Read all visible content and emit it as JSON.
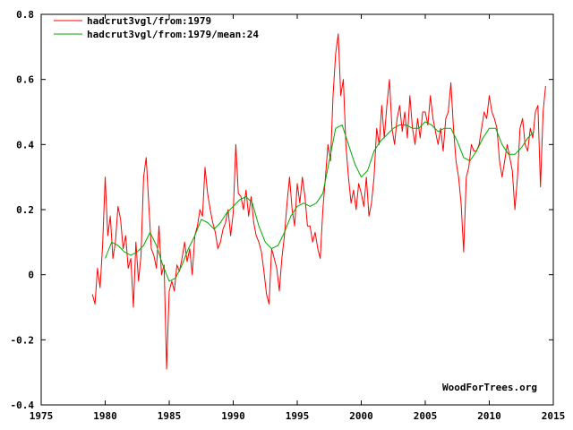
{
  "chart_data": {
    "type": "line",
    "title": "",
    "xlabel": "",
    "ylabel": "",
    "xlim": [
      1975,
      2015
    ],
    "ylim": [
      -0.4,
      0.8
    ],
    "x_ticks": [
      "1975",
      "1980",
      "1985",
      "1990",
      "1995",
      "2000",
      "2005",
      "2010",
      "2015"
    ],
    "y_ticks": [
      "-0.4",
      "-0.2",
      "0",
      "0.2",
      "0.4",
      "0.6",
      "0.8"
    ],
    "grid": false,
    "legend_position": "top-left",
    "credit": "WoodForTrees.org",
    "series": [
      {
        "name": "hadcrut3vgl/from:1979",
        "color": "#ff0000",
        "style": "monthly",
        "points": [
          [
            1979.0,
            -0.06
          ],
          [
            1979.2,
            -0.09
          ],
          [
            1979.4,
            0.02
          ],
          [
            1979.6,
            -0.04
          ],
          [
            1979.8,
            0.09
          ],
          [
            1980.0,
            0.3
          ],
          [
            1980.2,
            0.12
          ],
          [
            1980.4,
            0.18
          ],
          [
            1980.6,
            0.05
          ],
          [
            1980.8,
            0.1
          ],
          [
            1981.0,
            0.21
          ],
          [
            1981.2,
            0.17
          ],
          [
            1981.4,
            0.08
          ],
          [
            1981.6,
            0.12
          ],
          [
            1981.8,
            0.02
          ],
          [
            1982.0,
            0.05
          ],
          [
            1982.2,
            -0.1
          ],
          [
            1982.4,
            0.1
          ],
          [
            1982.6,
            -0.02
          ],
          [
            1982.8,
            0.06
          ],
          [
            1983.0,
            0.3
          ],
          [
            1983.2,
            0.36
          ],
          [
            1983.4,
            0.22
          ],
          [
            1983.6,
            0.08
          ],
          [
            1983.8,
            0.06
          ],
          [
            1984.0,
            0.02
          ],
          [
            1984.2,
            0.15
          ],
          [
            1984.4,
            0.0
          ],
          [
            1984.6,
            0.03
          ],
          [
            1984.8,
            -0.29
          ],
          [
            1985.0,
            -0.05
          ],
          [
            1985.2,
            -0.02
          ],
          [
            1985.4,
            -0.05
          ],
          [
            1985.6,
            0.03
          ],
          [
            1985.8,
            0.01
          ],
          [
            1986.0,
            0.05
          ],
          [
            1986.2,
            0.1
          ],
          [
            1986.4,
            0.04
          ],
          [
            1986.6,
            0.08
          ],
          [
            1986.8,
            0.0
          ],
          [
            1987.0,
            0.12
          ],
          [
            1987.2,
            0.15
          ],
          [
            1987.4,
            0.2
          ],
          [
            1987.6,
            0.18
          ],
          [
            1987.8,
            0.33
          ],
          [
            1988.0,
            0.25
          ],
          [
            1988.2,
            0.2
          ],
          [
            1988.4,
            0.16
          ],
          [
            1988.6,
            0.13
          ],
          [
            1988.8,
            0.08
          ],
          [
            1989.0,
            0.1
          ],
          [
            1989.2,
            0.14
          ],
          [
            1989.4,
            0.16
          ],
          [
            1989.6,
            0.2
          ],
          [
            1989.8,
            0.12
          ],
          [
            1990.0,
            0.19
          ],
          [
            1990.2,
            0.4
          ],
          [
            1990.4,
            0.25
          ],
          [
            1990.6,
            0.24
          ],
          [
            1990.8,
            0.2
          ],
          [
            1991.0,
            0.26
          ],
          [
            1991.2,
            0.18
          ],
          [
            1991.4,
            0.24
          ],
          [
            1991.6,
            0.16
          ],
          [
            1991.8,
            0.12
          ],
          [
            1992.0,
            0.1
          ],
          [
            1992.2,
            0.07
          ],
          [
            1992.4,
            0.01
          ],
          [
            1992.6,
            -0.06
          ],
          [
            1992.8,
            -0.09
          ],
          [
            1993.0,
            0.08
          ],
          [
            1993.2,
            0.05
          ],
          [
            1993.4,
            0.02
          ],
          [
            1993.6,
            -0.05
          ],
          [
            1993.8,
            0.05
          ],
          [
            1994.0,
            0.12
          ],
          [
            1994.2,
            0.22
          ],
          [
            1994.4,
            0.3
          ],
          [
            1994.6,
            0.2
          ],
          [
            1994.8,
            0.15
          ],
          [
            1995.0,
            0.28
          ],
          [
            1995.2,
            0.22
          ],
          [
            1995.4,
            0.3
          ],
          [
            1995.6,
            0.24
          ],
          [
            1995.8,
            0.15
          ],
          [
            1996.0,
            0.15
          ],
          [
            1996.2,
            0.1
          ],
          [
            1996.4,
            0.13
          ],
          [
            1996.6,
            0.08
          ],
          [
            1996.8,
            0.05
          ],
          [
            1997.0,
            0.2
          ],
          [
            1997.2,
            0.3
          ],
          [
            1997.4,
            0.4
          ],
          [
            1997.6,
            0.35
          ],
          [
            1997.8,
            0.55
          ],
          [
            1998.0,
            0.68
          ],
          [
            1998.2,
            0.74
          ],
          [
            1998.4,
            0.55
          ],
          [
            1998.6,
            0.6
          ],
          [
            1998.8,
            0.4
          ],
          [
            1999.0,
            0.3
          ],
          [
            1999.2,
            0.22
          ],
          [
            1999.4,
            0.26
          ],
          [
            1999.6,
            0.2
          ],
          [
            1999.8,
            0.28
          ],
          [
            2000.0,
            0.25
          ],
          [
            2000.2,
            0.21
          ],
          [
            2000.4,
            0.3
          ],
          [
            2000.6,
            0.18
          ],
          [
            2000.8,
            0.22
          ],
          [
            2001.0,
            0.3
          ],
          [
            2001.2,
            0.45
          ],
          [
            2001.4,
            0.4
          ],
          [
            2001.6,
            0.52
          ],
          [
            2001.8,
            0.42
          ],
          [
            2002.0,
            0.52
          ],
          [
            2002.2,
            0.6
          ],
          [
            2002.4,
            0.45
          ],
          [
            2002.6,
            0.4
          ],
          [
            2002.8,
            0.48
          ],
          [
            2003.0,
            0.52
          ],
          [
            2003.2,
            0.44
          ],
          [
            2003.4,
            0.5
          ],
          [
            2003.6,
            0.42
          ],
          [
            2003.8,
            0.55
          ],
          [
            2004.0,
            0.45
          ],
          [
            2004.2,
            0.4
          ],
          [
            2004.4,
            0.48
          ],
          [
            2004.6,
            0.42
          ],
          [
            2004.8,
            0.5
          ],
          [
            2005.0,
            0.5
          ],
          [
            2005.2,
            0.46
          ],
          [
            2005.4,
            0.55
          ],
          [
            2005.6,
            0.48
          ],
          [
            2005.8,
            0.44
          ],
          [
            2006.0,
            0.4
          ],
          [
            2006.2,
            0.45
          ],
          [
            2006.4,
            0.38
          ],
          [
            2006.6,
            0.48
          ],
          [
            2006.8,
            0.5
          ],
          [
            2007.0,
            0.59
          ],
          [
            2007.2,
            0.45
          ],
          [
            2007.4,
            0.35
          ],
          [
            2007.6,
            0.3
          ],
          [
            2007.8,
            0.22
          ],
          [
            2008.0,
            0.07
          ],
          [
            2008.2,
            0.3
          ],
          [
            2008.4,
            0.33
          ],
          [
            2008.6,
            0.4
          ],
          [
            2008.8,
            0.38
          ],
          [
            2009.0,
            0.38
          ],
          [
            2009.2,
            0.4
          ],
          [
            2009.4,
            0.45
          ],
          [
            2009.6,
            0.5
          ],
          [
            2009.8,
            0.48
          ],
          [
            2010.0,
            0.55
          ],
          [
            2010.2,
            0.5
          ],
          [
            2010.4,
            0.48
          ],
          [
            2010.6,
            0.45
          ],
          [
            2010.8,
            0.35
          ],
          [
            2011.0,
            0.3
          ],
          [
            2011.2,
            0.35
          ],
          [
            2011.4,
            0.4
          ],
          [
            2011.6,
            0.36
          ],
          [
            2011.8,
            0.32
          ],
          [
            2012.0,
            0.2
          ],
          [
            2012.2,
            0.3
          ],
          [
            2012.4,
            0.45
          ],
          [
            2012.6,
            0.48
          ],
          [
            2012.8,
            0.4
          ],
          [
            2013.0,
            0.38
          ],
          [
            2013.2,
            0.45
          ],
          [
            2013.4,
            0.42
          ],
          [
            2013.6,
            0.5
          ],
          [
            2013.8,
            0.52
          ],
          [
            2014.0,
            0.27
          ],
          [
            2014.2,
            0.5
          ],
          [
            2014.4,
            0.58
          ]
        ]
      },
      {
        "name": "hadcrut3vgl/from:1979/mean:24",
        "color": "#00aa00",
        "style": "smoothed",
        "points": [
          [
            1980.0,
            0.05
          ],
          [
            1980.5,
            0.1
          ],
          [
            1981.0,
            0.09
          ],
          [
            1981.5,
            0.07
          ],
          [
            1982.0,
            0.06
          ],
          [
            1982.5,
            0.07
          ],
          [
            1983.0,
            0.09
          ],
          [
            1983.5,
            0.13
          ],
          [
            1984.0,
            0.09
          ],
          [
            1984.5,
            0.03
          ],
          [
            1985.0,
            -0.02
          ],
          [
            1985.5,
            -0.01
          ],
          [
            1986.0,
            0.03
          ],
          [
            1986.5,
            0.08
          ],
          [
            1987.0,
            0.12
          ],
          [
            1987.5,
            0.17
          ],
          [
            1988.0,
            0.16
          ],
          [
            1988.5,
            0.14
          ],
          [
            1989.0,
            0.16
          ],
          [
            1989.5,
            0.19
          ],
          [
            1990.0,
            0.21
          ],
          [
            1990.5,
            0.23
          ],
          [
            1991.0,
            0.24
          ],
          [
            1991.5,
            0.22
          ],
          [
            1992.0,
            0.15
          ],
          [
            1992.5,
            0.1
          ],
          [
            1993.0,
            0.08
          ],
          [
            1993.5,
            0.09
          ],
          [
            1994.0,
            0.13
          ],
          [
            1994.5,
            0.18
          ],
          [
            1995.0,
            0.21
          ],
          [
            1995.5,
            0.22
          ],
          [
            1996.0,
            0.21
          ],
          [
            1996.5,
            0.22
          ],
          [
            1997.0,
            0.25
          ],
          [
            1997.5,
            0.35
          ],
          [
            1998.0,
            0.45
          ],
          [
            1998.5,
            0.46
          ],
          [
            1999.0,
            0.4
          ],
          [
            1999.5,
            0.34
          ],
          [
            2000.0,
            0.3
          ],
          [
            2000.5,
            0.32
          ],
          [
            2001.0,
            0.38
          ],
          [
            2001.5,
            0.41
          ],
          [
            2002.0,
            0.43
          ],
          [
            2002.5,
            0.45
          ],
          [
            2003.0,
            0.46
          ],
          [
            2003.5,
            0.46
          ],
          [
            2004.0,
            0.45
          ],
          [
            2004.5,
            0.45
          ],
          [
            2005.0,
            0.47
          ],
          [
            2005.5,
            0.46
          ],
          [
            2006.0,
            0.44
          ],
          [
            2006.5,
            0.45
          ],
          [
            2007.0,
            0.45
          ],
          [
            2007.5,
            0.41
          ],
          [
            2008.0,
            0.36
          ],
          [
            2008.5,
            0.35
          ],
          [
            2009.0,
            0.38
          ],
          [
            2009.5,
            0.42
          ],
          [
            2010.0,
            0.45
          ],
          [
            2010.5,
            0.45
          ],
          [
            2011.0,
            0.4
          ],
          [
            2011.5,
            0.37
          ],
          [
            2012.0,
            0.37
          ],
          [
            2012.5,
            0.39
          ],
          [
            2013.0,
            0.42
          ],
          [
            2013.5,
            0.44
          ]
        ]
      }
    ]
  }
}
